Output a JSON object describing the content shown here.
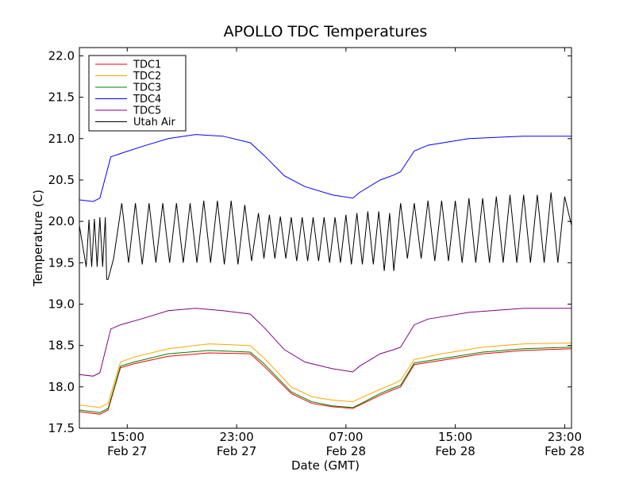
{
  "chart_data": {
    "type": "line",
    "title": "APOLLO TDC Temperatures",
    "xlabel": "Date (GMT)",
    "ylabel": "Temperature (C)",
    "xlim_hours": [
      11.5,
      47.5
    ],
    "ylim": [
      17.5,
      22.1
    ],
    "y_ticks": [
      17.5,
      18.0,
      18.5,
      19.0,
      19.5,
      20.0,
      20.5,
      21.0,
      21.5,
      22.0
    ],
    "y_tick_labels": [
      "17.5",
      "18.0",
      "18.5",
      "19.0",
      "19.5",
      "20.0",
      "20.5",
      "21.0",
      "21.5",
      "22.0"
    ],
    "x_ticks": [
      {
        "hour": 15,
        "line1": "15:00",
        "line2": "Feb 27"
      },
      {
        "hour": 23,
        "line1": "23:00",
        "line2": "Feb 27"
      },
      {
        "hour": 31,
        "line1": "07:00",
        "line2": "Feb 28"
      },
      {
        "hour": 39,
        "line1": "15:00",
        "line2": "Feb 28"
      },
      {
        "hour": 47,
        "line1": "23:00",
        "line2": "Feb 28"
      }
    ],
    "legend_position": "top-left",
    "series": [
      {
        "name": "TDC1",
        "color": "#ff0000",
        "x": [
          11.5,
          13.0,
          13.6,
          14.5,
          15.5,
          18.0,
          21.0,
          24.0,
          25.0,
          27.0,
          28.5,
          30.0,
          31.5,
          32.0,
          33.5,
          34.5,
          35.0,
          36.0,
          38.0,
          41.0,
          44.0,
          47.5
        ],
        "y": [
          17.7,
          17.67,
          17.72,
          18.23,
          18.28,
          18.37,
          18.41,
          18.4,
          18.25,
          17.92,
          17.8,
          17.76,
          17.74,
          17.78,
          17.9,
          17.97,
          18.0,
          18.27,
          18.32,
          18.4,
          18.44,
          18.46
        ]
      },
      {
        "name": "TDC2",
        "color": "#ffa500",
        "x": [
          11.5,
          13.0,
          13.6,
          14.5,
          15.5,
          18.0,
          21.0,
          24.0,
          25.0,
          27.0,
          28.5,
          30.0,
          31.5,
          32.0,
          33.5,
          34.5,
          35.0,
          36.0,
          38.0,
          41.0,
          44.0,
          47.5
        ],
        "y": [
          17.78,
          17.75,
          17.8,
          18.3,
          18.36,
          18.46,
          18.52,
          18.5,
          18.35,
          18.0,
          17.88,
          17.84,
          17.82,
          17.86,
          17.97,
          18.04,
          18.08,
          18.33,
          18.4,
          18.48,
          18.52,
          18.53
        ]
      },
      {
        "name": "TDC3",
        "color": "#008000",
        "x": [
          11.5,
          13.0,
          13.6,
          14.5,
          15.5,
          18.0,
          21.0,
          24.0,
          25.0,
          27.0,
          28.5,
          30.0,
          31.5,
          32.0,
          33.5,
          34.5,
          35.0,
          36.0,
          38.0,
          41.0,
          44.0,
          47.5
        ],
        "y": [
          17.72,
          17.69,
          17.74,
          18.25,
          18.3,
          18.4,
          18.44,
          18.42,
          18.28,
          17.94,
          17.82,
          17.77,
          17.75,
          17.79,
          17.92,
          17.99,
          18.02,
          18.29,
          18.34,
          18.42,
          18.46,
          18.48
        ]
      },
      {
        "name": "TDC4",
        "color": "#0000ff",
        "x": [
          11.5,
          12.5,
          13.0,
          13.8,
          14.5,
          16.0,
          18.0,
          20.0,
          22.0,
          24.0,
          25.0,
          26.5,
          28.0,
          30.0,
          31.5,
          32.0,
          33.5,
          34.5,
          35.0,
          36.0,
          37.0,
          40.0,
          44.0,
          47.5
        ],
        "y": [
          20.26,
          20.24,
          20.28,
          20.78,
          20.82,
          20.9,
          21.0,
          21.05,
          21.03,
          20.95,
          20.8,
          20.55,
          20.42,
          20.32,
          20.28,
          20.35,
          20.5,
          20.56,
          20.6,
          20.85,
          20.92,
          21.0,
          21.03,
          21.03
        ]
      },
      {
        "name": "TDC5",
        "color": "#800080",
        "x": [
          11.5,
          12.5,
          13.0,
          13.8,
          14.5,
          16.0,
          18.0,
          20.0,
          22.0,
          24.0,
          25.0,
          26.5,
          28.0,
          30.0,
          31.5,
          32.0,
          33.5,
          34.5,
          35.0,
          36.0,
          37.0,
          40.0,
          44.0,
          47.5
        ],
        "y": [
          18.15,
          18.13,
          18.17,
          18.7,
          18.75,
          18.82,
          18.92,
          18.95,
          18.92,
          18.88,
          18.72,
          18.45,
          18.3,
          18.22,
          18.18,
          18.25,
          18.4,
          18.45,
          18.48,
          18.75,
          18.82,
          18.9,
          18.95,
          18.95
        ]
      },
      {
        "name": "Utah Air",
        "color": "#000000",
        "x": [
          11.5,
          12.0,
          12.2,
          12.4,
          12.6,
          12.8,
          13.0,
          13.2,
          13.4,
          13.5,
          13.6,
          14.0,
          14.6,
          15.1,
          15.6,
          16.1,
          16.6,
          17.1,
          17.6,
          18.1,
          18.6,
          19.1,
          19.6,
          20.1,
          20.6,
          21.1,
          21.6,
          22.1,
          22.6,
          23.1,
          23.6,
          24.1,
          24.6,
          25.0,
          25.4,
          25.8,
          26.2,
          26.6,
          27.0,
          27.4,
          27.8,
          28.2,
          28.6,
          29.0,
          29.4,
          29.8,
          30.2,
          30.6,
          31.0,
          31.4,
          31.8,
          32.2,
          32.6,
          33.0,
          33.4,
          33.8,
          34.2,
          34.5,
          35.0,
          35.5,
          36.0,
          36.5,
          37.0,
          37.5,
          38.0,
          38.5,
          39.0,
          39.5,
          40.0,
          40.5,
          41.0,
          41.5,
          42.0,
          42.5,
          43.0,
          43.5,
          44.0,
          44.5,
          45.0,
          45.5,
          46.0,
          46.5,
          47.0,
          47.5
        ],
        "y": [
          19.95,
          19.45,
          20.02,
          19.45,
          20.03,
          19.45,
          20.05,
          19.45,
          20.05,
          19.3,
          19.3,
          19.55,
          20.22,
          19.5,
          20.22,
          19.48,
          20.22,
          19.5,
          20.22,
          19.5,
          20.22,
          19.5,
          20.22,
          19.5,
          20.25,
          19.5,
          20.25,
          19.48,
          20.25,
          19.48,
          20.2,
          19.52,
          20.1,
          19.55,
          20.08,
          19.55,
          20.06,
          19.55,
          20.05,
          19.52,
          20.05,
          19.52,
          20.05,
          19.52,
          20.05,
          19.5,
          20.05,
          19.5,
          20.08,
          19.48,
          20.1,
          19.48,
          20.12,
          19.48,
          20.12,
          19.4,
          20.1,
          19.4,
          20.22,
          19.55,
          20.22,
          19.55,
          20.25,
          19.52,
          20.25,
          19.52,
          20.25,
          19.5,
          20.28,
          19.5,
          20.28,
          19.5,
          20.3,
          19.5,
          20.32,
          19.5,
          20.32,
          19.5,
          20.32,
          19.5,
          20.35,
          19.5,
          20.3,
          19.95
        ]
      }
    ]
  }
}
